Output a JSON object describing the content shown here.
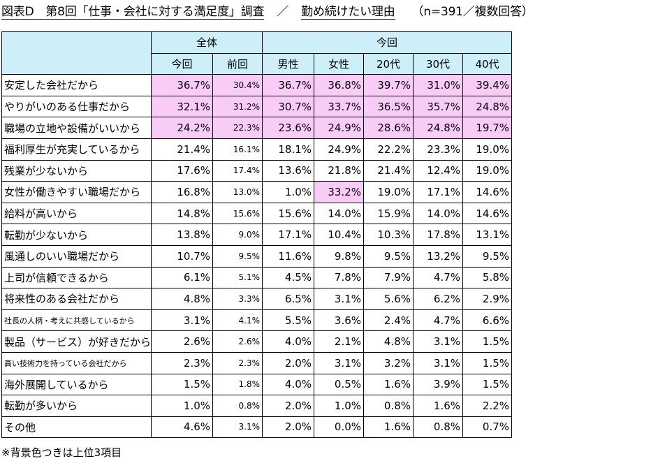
{
  "title": {
    "part1": "図表D　第8回「仕事・会社に対する満足度」調査",
    "part2": "／",
    "part3": "勤め続けたい理由",
    "part4": "（n=391／複数回答）"
  },
  "table": {
    "group_headers": [
      "全体",
      "今回"
    ],
    "column_headers": [
      "今回",
      "前回",
      "男性",
      "女性",
      "20代",
      "30代",
      "40代"
    ],
    "rows": [
      {
        "label": "安定した会社だから",
        "values": [
          "36.7%",
          "30.4%",
          "36.7%",
          "36.8%",
          "39.7%",
          "31.0%",
          "39.4%"
        ]
      },
      {
        "label": "やりがいのある仕事だから",
        "values": [
          "32.1%",
          "31.2%",
          "30.7%",
          "33.7%",
          "36.5%",
          "35.7%",
          "24.8%"
        ]
      },
      {
        "label": "職場の立地や設備がいいから",
        "values": [
          "24.2%",
          "22.3%",
          "23.6%",
          "24.9%",
          "28.6%",
          "24.8%",
          "19.7%"
        ]
      },
      {
        "label": "福利厚生が充実しているから",
        "values": [
          "21.4%",
          "16.1%",
          "18.1%",
          "24.9%",
          "22.2%",
          "23.3%",
          "19.0%"
        ]
      },
      {
        "label": "残業が少ないから",
        "values": [
          "17.6%",
          "17.4%",
          "13.6%",
          "21.8%",
          "21.4%",
          "12.4%",
          "19.0%"
        ]
      },
      {
        "label": "女性が働きやすい職場だから",
        "values": [
          "16.8%",
          "13.0%",
          "1.0%",
          "33.2%",
          "19.0%",
          "17.1%",
          "14.6%"
        ]
      },
      {
        "label": "給料が高いから",
        "values": [
          "14.8%",
          "15.6%",
          "15.6%",
          "14.0%",
          "15.9%",
          "14.0%",
          "14.6%"
        ]
      },
      {
        "label": "転勤が少ないから",
        "values": [
          "13.8%",
          "9.0%",
          "17.1%",
          "10.4%",
          "10.3%",
          "17.8%",
          "13.1%"
        ]
      },
      {
        "label": "風通しのいい職場だから",
        "values": [
          "10.7%",
          "9.5%",
          "11.6%",
          "9.8%",
          "9.5%",
          "13.2%",
          "9.5%"
        ]
      },
      {
        "label": "上司が信頼できるから",
        "values": [
          "6.1%",
          "5.1%",
          "4.5%",
          "7.8%",
          "7.9%",
          "4.7%",
          "5.8%"
        ]
      },
      {
        "label": "将来性のある会社だから",
        "values": [
          "4.8%",
          "3.3%",
          "6.5%",
          "3.1%",
          "5.6%",
          "6.2%",
          "2.9%"
        ]
      },
      {
        "label": "社長の人柄・考えに共感しているから",
        "values": [
          "3.1%",
          "4.1%",
          "5.5%",
          "3.6%",
          "2.4%",
          "4.7%",
          "6.6%"
        ]
      },
      {
        "label": "製品（サービス）が好きだから",
        "values": [
          "2.6%",
          "2.6%",
          "4.0%",
          "2.1%",
          "4.8%",
          "3.1%",
          "1.5%"
        ]
      },
      {
        "label": "高い技術力を持っている会社だから",
        "values": [
          "2.3%",
          "2.3%",
          "2.0%",
          "3.1%",
          "3.2%",
          "3.1%",
          "1.5%"
        ]
      },
      {
        "label": "海外展開しているから",
        "values": [
          "1.5%",
          "1.8%",
          "4.0%",
          "0.5%",
          "1.6%",
          "3.9%",
          "1.5%"
        ]
      },
      {
        "label": "転勤が多いから",
        "values": [
          "1.0%",
          "0.8%",
          "2.0%",
          "1.0%",
          "0.8%",
          "1.6%",
          "2.2%"
        ]
      },
      {
        "label": "その他",
        "values": [
          "4.6%",
          "3.1%",
          "2.0%",
          "0.0%",
          "1.6%",
          "0.8%",
          "0.7%"
        ]
      }
    ],
    "highlighted_cells": [
      [
        0,
        0
      ],
      [
        0,
        1
      ],
      [
        0,
        2
      ],
      [
        0,
        3
      ],
      [
        0,
        4
      ],
      [
        0,
        5
      ],
      [
        0,
        6
      ],
      [
        1,
        0
      ],
      [
        1,
        1
      ],
      [
        1,
        2
      ],
      [
        1,
        3
      ],
      [
        1,
        4
      ],
      [
        1,
        5
      ],
      [
        1,
        6
      ],
      [
        2,
        0
      ],
      [
        2,
        1
      ],
      [
        2,
        2
      ],
      [
        2,
        3
      ],
      [
        2,
        4
      ],
      [
        2,
        5
      ],
      [
        2,
        6
      ],
      [
        5,
        3
      ]
    ],
    "small_label_rows": [
      11,
      13
    ]
  },
  "note": "※背景色つきは上位3項目",
  "colors": {
    "header_bg": "#cdeff9",
    "highlight_bg": "#f9ccf7",
    "border": "#000000"
  },
  "chart_data": {
    "type": "table",
    "title": "図表D　第8回「仕事・会社に対する満足度」調査　／　勤め続けたい理由　（n=391／複数回答）",
    "columns": [
      "全体 今回",
      "全体 前回",
      "今回 男性",
      "今回 女性",
      "今回 20代",
      "今回 30代",
      "今回 40代"
    ],
    "categories": [
      "安定した会社だから",
      "やりがいのある仕事だから",
      "職場の立地や設備がいいから",
      "福利厚生が充実しているから",
      "残業が少ないから",
      "女性が働きやすい職場だから",
      "給料が高いから",
      "転勤が少ないから",
      "風通しのいい職場だから",
      "上司が信頼できるから",
      "将来性のある会社だから",
      "社長の人柄・考えに共感しているから",
      "製品（サービス）が好きだから",
      "高い技術力を持っている会社だから",
      "海外展開しているから",
      "転勤が多いから",
      "その他"
    ],
    "series": [
      {
        "name": "今回",
        "values": [
          36.7,
          32.1,
          24.2,
          21.4,
          17.6,
          16.8,
          14.8,
          13.8,
          10.7,
          6.1,
          4.8,
          3.1,
          2.6,
          2.3,
          1.5,
          1.0,
          4.6
        ]
      },
      {
        "name": "前回",
        "values": [
          30.4,
          31.2,
          22.3,
          16.1,
          17.4,
          13.0,
          15.6,
          9.0,
          9.5,
          5.1,
          3.3,
          4.1,
          2.6,
          2.3,
          1.8,
          0.8,
          3.1
        ]
      },
      {
        "name": "男性",
        "values": [
          36.7,
          30.7,
          23.6,
          18.1,
          13.6,
          1.0,
          15.6,
          17.1,
          11.6,
          4.5,
          6.5,
          5.5,
          4.0,
          2.0,
          4.0,
          2.0,
          2.0
        ]
      },
      {
        "name": "女性",
        "values": [
          36.8,
          33.7,
          24.9,
          24.9,
          21.8,
          33.2,
          14.0,
          10.4,
          9.8,
          7.8,
          3.1,
          3.6,
          2.1,
          3.1,
          0.5,
          1.0,
          0.0
        ]
      },
      {
        "name": "20代",
        "values": [
          39.7,
          36.5,
          28.6,
          22.2,
          21.4,
          19.0,
          15.9,
          10.3,
          9.5,
          7.9,
          5.6,
          2.4,
          4.8,
          3.2,
          1.6,
          0.8,
          1.6
        ]
      },
      {
        "name": "30代",
        "values": [
          31.0,
          35.7,
          24.8,
          23.3,
          12.4,
          17.1,
          14.0,
          17.8,
          13.2,
          4.7,
          6.2,
          4.7,
          3.1,
          3.1,
          3.9,
          1.6,
          0.8
        ]
      },
      {
        "name": "40代",
        "values": [
          39.4,
          24.8,
          19.7,
          19.0,
          19.0,
          14.6,
          14.6,
          13.1,
          9.5,
          5.8,
          2.9,
          6.6,
          1.5,
          1.5,
          1.5,
          2.2,
          0.7
        ]
      }
    ],
    "unit": "%"
  }
}
